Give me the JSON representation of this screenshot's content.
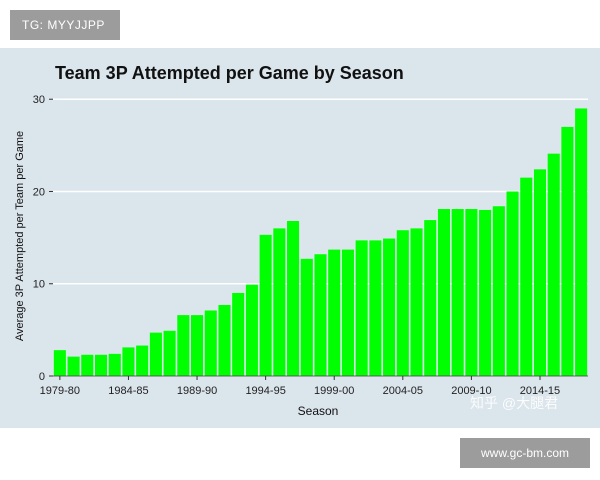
{
  "tag_badge": "TG: MYYJJPP",
  "domain_badge": "www.gc-bm.com",
  "watermark": "知乎 @大腿君",
  "colors": {
    "bar": "#00ff00",
    "background": "#dbe5ec",
    "gridline": "#ffffff"
  },
  "chart_data": {
    "type": "bar",
    "title": "Team 3P Attempted per Game by Season",
    "xlabel": "Season",
    "ylabel": "Average 3P Attempted per Team per Game",
    "ylim": [
      0,
      31
    ],
    "yticks": [
      0,
      10,
      20,
      30
    ],
    "grid": true,
    "categories": [
      "1979-80",
      "1980-81",
      "1981-82",
      "1982-83",
      "1983-84",
      "1984-85",
      "1985-86",
      "1986-87",
      "1987-88",
      "1988-89",
      "1989-90",
      "1990-91",
      "1991-92",
      "1992-93",
      "1993-94",
      "1994-95",
      "1995-96",
      "1996-97",
      "1997-98",
      "1998-99",
      "1999-00",
      "2000-01",
      "2001-02",
      "2002-03",
      "2003-04",
      "2004-05",
      "2005-06",
      "2006-07",
      "2007-08",
      "2008-09",
      "2009-10",
      "2010-11",
      "2011-12",
      "2012-13",
      "2013-14",
      "2014-15",
      "2015-16",
      "2016-17",
      "2017-18"
    ],
    "values": [
      2.8,
      2.1,
      2.3,
      2.3,
      2.4,
      3.1,
      3.3,
      4.7,
      4.9,
      6.6,
      6.6,
      7.1,
      7.7,
      9.0,
      9.9,
      15.3,
      16.0,
      16.8,
      12.7,
      13.2,
      13.7,
      13.7,
      14.7,
      14.7,
      14.9,
      15.8,
      16.0,
      16.9,
      18.1,
      18.1,
      18.1,
      18.0,
      18.4,
      20.0,
      21.5,
      22.4,
      24.1,
      27.0,
      29.0
    ],
    "xtick_labels": [
      "1979-80",
      "1984-85",
      "1989-90",
      "1994-95",
      "1999-00",
      "2004-05",
      "2009-10",
      "2014-15"
    ],
    "series": [
      {
        "values_ref": "values"
      }
    ]
  }
}
